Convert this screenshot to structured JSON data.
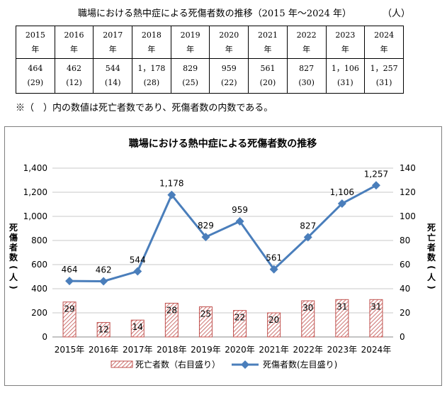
{
  "table": {
    "title": "職場における熱中症による死傷者数の推移（2015 年～2024 年）",
    "unit": "（人）",
    "years": [
      "2015",
      "2016",
      "2017",
      "2018",
      "2019",
      "2020",
      "2021",
      "2022",
      "2023",
      "2024"
    ],
    "year_suffix": "年",
    "casualties": [
      "464",
      "462",
      "544",
      "1，178",
      "829",
      "959",
      "561",
      "827",
      "1，106",
      "1，257"
    ],
    "deaths": [
      "(29)",
      "(12)",
      "(14)",
      "(28)",
      "(25)",
      "(22)",
      "(20)",
      "(30)",
      "(31)",
      "(31)"
    ],
    "note": "※（　）内の数値は死亡者数であり、死傷者数の内数である。"
  },
  "chart_data": {
    "type": "bar+line",
    "title": "職場における熱中症による死傷者数の推移",
    "categories": [
      "2015年",
      "2016年",
      "2017年",
      "2018年",
      "2019年",
      "2020年",
      "2021年",
      "2022年",
      "2023年",
      "2024年"
    ],
    "series": [
      {
        "name": "死亡者数（右目盛り）",
        "type": "bar",
        "axis": "right",
        "values": [
          29,
          12,
          14,
          28,
          25,
          22,
          20,
          30,
          31,
          31
        ],
        "color": "#c0504d"
      },
      {
        "name": "死傷者数(左目盛り)",
        "type": "line",
        "axis": "left",
        "values": [
          464,
          462,
          544,
          1178,
          829,
          959,
          561,
          827,
          1106,
          1257
        ],
        "color": "#4a7ebb"
      }
    ],
    "value_labels": [
      "464",
      "462",
      "544",
      "1,178",
      "829",
      "959",
      "561",
      "827",
      "1,106",
      "1,257"
    ],
    "ylabel_left": "死傷者数(人)",
    "ylabel_right": "死亡者数(人)",
    "ylim_left": [
      0,
      1400
    ],
    "yticks_left": [
      "0",
      "200",
      "400",
      "600",
      "800",
      "1,000",
      "1,200",
      "1,400"
    ],
    "ylim_right": [
      0,
      140
    ],
    "yticks_right": [
      "0",
      "20",
      "40",
      "60",
      "80",
      "100",
      "120",
      "140"
    ],
    "grid": true,
    "legend": "bottom",
    "legend_bar": "死亡者数（右目盛り）",
    "legend_line": "死傷者数(左目盛り)"
  }
}
